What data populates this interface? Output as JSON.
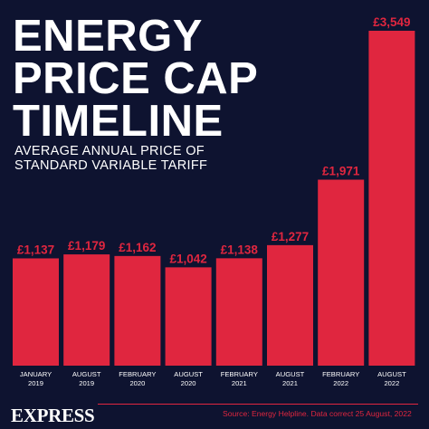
{
  "title_lines": [
    "ENERGY",
    "PRICE CAP",
    "TIMELINE"
  ],
  "subtitle_lines": [
    "AVERAGE ANNUAL PRICE OF",
    "STANDARD VARIABLE TARIFF"
  ],
  "footer": {
    "brand": "EXPRESS",
    "source": "Source: Energy Helpline. Data correct 25 August, 2022"
  },
  "colors": {
    "background": "#0e1330",
    "bar": "#e0263f",
    "text": "#ffffff"
  },
  "chart_data": {
    "type": "bar",
    "title": "ENERGY PRICE CAP TIMELINE",
    "subtitle": "AVERAGE ANNUAL PRICE OF STANDARD VARIABLE TARIFF",
    "categories": [
      [
        "JANUARY",
        "2019"
      ],
      [
        "AUGUST",
        "2019"
      ],
      [
        "FEBRUARY",
        "2020"
      ],
      [
        "AUGUST",
        "2020"
      ],
      [
        "FEBRUARY",
        "2021"
      ],
      [
        "AUGUST",
        "2021"
      ],
      [
        "FEBRUARY",
        "2022"
      ],
      [
        "AUGUST",
        "2022"
      ]
    ],
    "values": [
      1137,
      1179,
      1162,
      1042,
      1138,
      1277,
      1971,
      3549
    ],
    "value_labels": [
      "£1,137",
      "£1,179",
      "£1,162",
      "£1,042",
      "£1,138",
      "£1,277",
      "£1,971",
      "£3,549"
    ],
    "xlabel": "",
    "ylabel": "",
    "grid": false,
    "legend": "none"
  }
}
